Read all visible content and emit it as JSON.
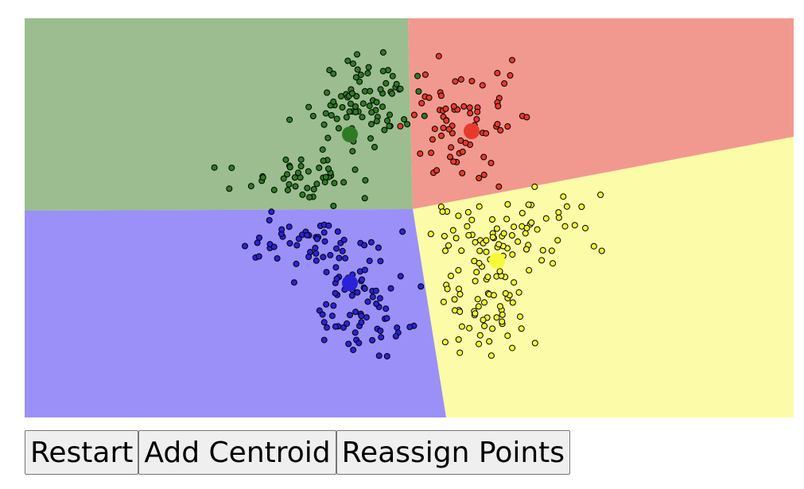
{
  "buttons": [
    "Restart",
    "Add Centroid",
    "Reassign Points"
  ]
}
